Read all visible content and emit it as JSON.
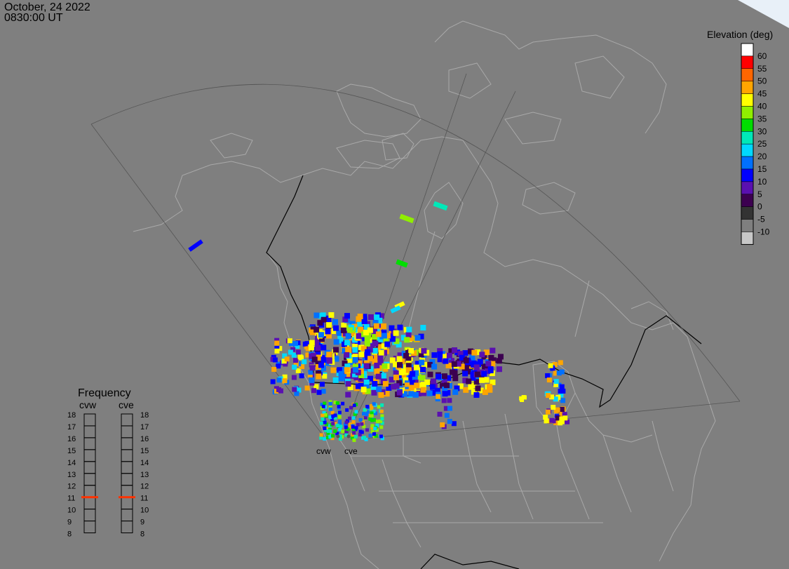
{
  "header": {
    "date": "October, 24 2022",
    "time": "0830:00 UT"
  },
  "legend": {
    "title": "Elevation (deg)",
    "bins": [
      {
        "label": "60",
        "color": "#ffffff"
      },
      {
        "label": "55",
        "color": "#ff0000"
      },
      {
        "label": "50",
        "color": "#ff6600"
      },
      {
        "label": "45",
        "color": "#ffa500"
      },
      {
        "label": "40",
        "color": "#ffff00"
      },
      {
        "label": "35",
        "color": "#90ee00"
      },
      {
        "label": "30",
        "color": "#00dd00"
      },
      {
        "label": "25",
        "color": "#00e8b8"
      },
      {
        "label": "20",
        "color": "#00d8ff"
      },
      {
        "label": "15",
        "color": "#0070ff"
      },
      {
        "label": "10",
        "color": "#0000ff"
      },
      {
        "label": "5",
        "color": "#5a10b0"
      },
      {
        "label": "0",
        "color": "#3c0050"
      },
      {
        "label": "-5",
        "color": "#333333"
      },
      {
        "label": "-10",
        "color": "#7f7f7f"
      },
      {
        "label": "",
        "color": "#c8c8c8"
      }
    ]
  },
  "frequency": {
    "title": "Frequency",
    "radars": [
      {
        "name": "cvw",
        "selected_mhz": 11
      },
      {
        "name": "cve",
        "selected_mhz": 11
      }
    ],
    "levels": [
      "18",
      "17",
      "16",
      "15",
      "14",
      "13",
      "12",
      "11",
      "10",
      "9",
      "8"
    ]
  },
  "stations": [
    {
      "label": "cvw"
    },
    {
      "label": "cve"
    }
  ],
  "colors": {
    "background": "#7f7f7f",
    "land_lines": "#a9a9a9",
    "fov_lines": "#555555",
    "border": "#000000",
    "marker": "#ff3300"
  }
}
